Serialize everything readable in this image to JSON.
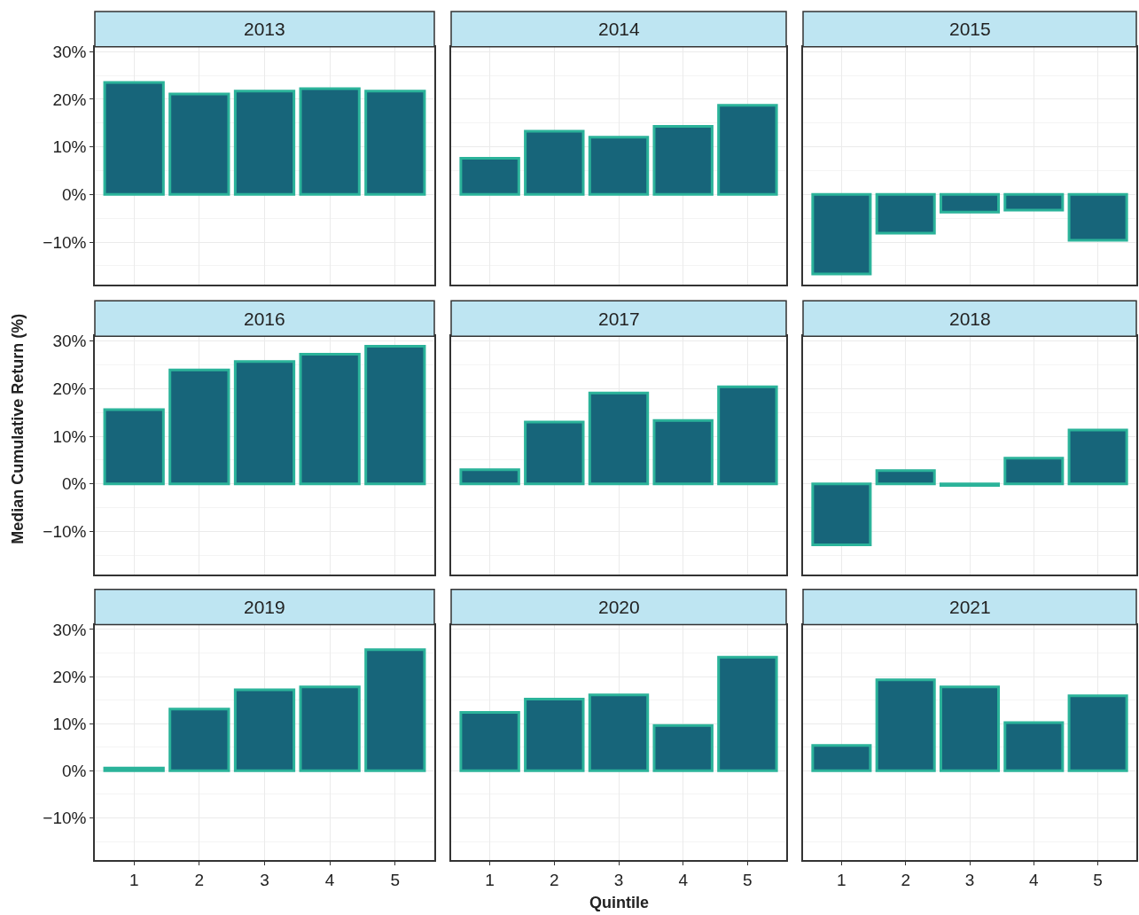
{
  "chart_data": [
    {
      "type": "bar",
      "title": "2013",
      "categories": [
        "1",
        "2",
        "3",
        "4",
        "5"
      ],
      "values": [
        23.5,
        21.1,
        21.7,
        22.2,
        21.7
      ],
      "color": "#17657a",
      "ylim": [
        -19,
        31
      ],
      "yticks": [
        {
          "value": -10,
          "label": "−10%"
        },
        {
          "value": 0,
          "label": "0%"
        },
        {
          "value": 10,
          "label": "10%"
        },
        {
          "value": 20,
          "label": "20%"
        },
        {
          "value": 30,
          "label": "30%"
        }
      ],
      "grid": true,
      "tick_labels": "y"
    },
    {
      "type": "bar",
      "title": "2014",
      "categories": [
        "1",
        "2",
        "3",
        "4",
        "5"
      ],
      "values": [
        7.6,
        13.3,
        12.0,
        14.3,
        18.7
      ],
      "color": "#17657a",
      "ylim": [
        -19,
        31
      ],
      "yticks": [
        {
          "value": -10,
          "label": null
        },
        {
          "value": 0,
          "label": null
        },
        {
          "value": 10,
          "label": null
        },
        {
          "value": 20,
          "label": null
        },
        {
          "value": 30,
          "label": null
        }
      ],
      "grid": true,
      "tick_labels": false
    },
    {
      "type": "bar",
      "title": "2015",
      "categories": [
        "1",
        "2",
        "3",
        "4",
        "5"
      ],
      "values": [
        -16.7,
        -8.1,
        -3.7,
        -3.3,
        -9.6
      ],
      "color": "#17657a",
      "ylim": [
        -19,
        31
      ],
      "yticks": [
        {
          "value": -10,
          "label": null
        },
        {
          "value": 0,
          "label": null
        },
        {
          "value": 10,
          "label": null
        },
        {
          "value": 20,
          "label": null
        },
        {
          "value": 30,
          "label": null
        }
      ],
      "grid": true,
      "tick_labels": false
    },
    {
      "type": "bar",
      "title": "2016",
      "ylabel": "Median Cumulative Return (%)",
      "categories": [
        "1",
        "2",
        "3",
        "4",
        "5"
      ],
      "values": [
        15.6,
        23.9,
        25.7,
        27.2,
        28.9
      ],
      "color": "#17657a",
      "ylim": [
        -19,
        31
      ],
      "yticks": [
        {
          "value": -10,
          "label": "−10%"
        },
        {
          "value": 0,
          "label": "0%"
        },
        {
          "value": 10,
          "label": "10%"
        },
        {
          "value": 20,
          "label": "20%"
        },
        {
          "value": 30,
          "label": "30%"
        }
      ],
      "grid": true,
      "tick_labels": "y"
    },
    {
      "type": "bar",
      "title": "2017",
      "categories": [
        "1",
        "2",
        "3",
        "4",
        "5"
      ],
      "values": [
        3.0,
        13.0,
        19.1,
        13.3,
        20.4
      ],
      "color": "#17657a",
      "ylim": [
        -19,
        31
      ],
      "yticks": [
        {
          "value": -10,
          "label": null
        },
        {
          "value": 0,
          "label": null
        },
        {
          "value": 10,
          "label": null
        },
        {
          "value": 20,
          "label": null
        },
        {
          "value": 30,
          "label": null
        }
      ],
      "grid": true,
      "tick_labels": false
    },
    {
      "type": "bar",
      "title": "2018",
      "categories": [
        "1",
        "2",
        "3",
        "4",
        "5"
      ],
      "values": [
        -12.8,
        2.8,
        -0.3,
        5.4,
        11.3
      ],
      "color": "#17657a",
      "ylim": [
        -19,
        31
      ],
      "yticks": [
        {
          "value": -10,
          "label": null
        },
        {
          "value": 0,
          "label": null
        },
        {
          "value": 10,
          "label": null
        },
        {
          "value": 20,
          "label": null
        },
        {
          "value": 30,
          "label": null
        }
      ],
      "grid": true,
      "tick_labels": false
    },
    {
      "type": "bar",
      "title": "2019",
      "categories": [
        "1",
        "2",
        "3",
        "4",
        "5"
      ],
      "values": [
        0.6,
        13.1,
        17.2,
        17.8,
        25.7
      ],
      "color": "#17657a",
      "ylim": [
        -19,
        31
      ],
      "yticks": [
        {
          "value": -10,
          "label": "−10%"
        },
        {
          "value": 0,
          "label": "0%"
        },
        {
          "value": 10,
          "label": "10%"
        },
        {
          "value": 20,
          "label": "20%"
        },
        {
          "value": 30,
          "label": "30%"
        }
      ],
      "grid": true
    },
    {
      "type": "bar",
      "title": "2020",
      "xlabel": "Quintile",
      "categories": [
        "1",
        "2",
        "3",
        "4",
        "5"
      ],
      "values": [
        12.4,
        15.2,
        16.1,
        9.6,
        24.1
      ],
      "color": "#17657a",
      "ylim": [
        -19,
        31
      ],
      "yticks": [
        {
          "value": -10,
          "label": null
        },
        {
          "value": 0,
          "label": null
        },
        {
          "value": 10,
          "label": null
        },
        {
          "value": 20,
          "label": null
        },
        {
          "value": 30,
          "label": null
        }
      ],
      "grid": true,
      "tick_labels": "x"
    },
    {
      "type": "bar",
      "title": "2021",
      "categories": [
        "1",
        "2",
        "3",
        "4",
        "5"
      ],
      "values": [
        5.4,
        19.3,
        17.8,
        10.2,
        15.9
      ],
      "color": "#17657a",
      "ylim": [
        -19,
        31
      ],
      "yticks": [
        {
          "value": -10,
          "label": null
        },
        {
          "value": 0,
          "label": null
        },
        {
          "value": 10,
          "label": null
        },
        {
          "value": 20,
          "label": null
        },
        {
          "value": 30,
          "label": null
        }
      ],
      "grid": true,
      "tick_labels": "x"
    }
  ]
}
